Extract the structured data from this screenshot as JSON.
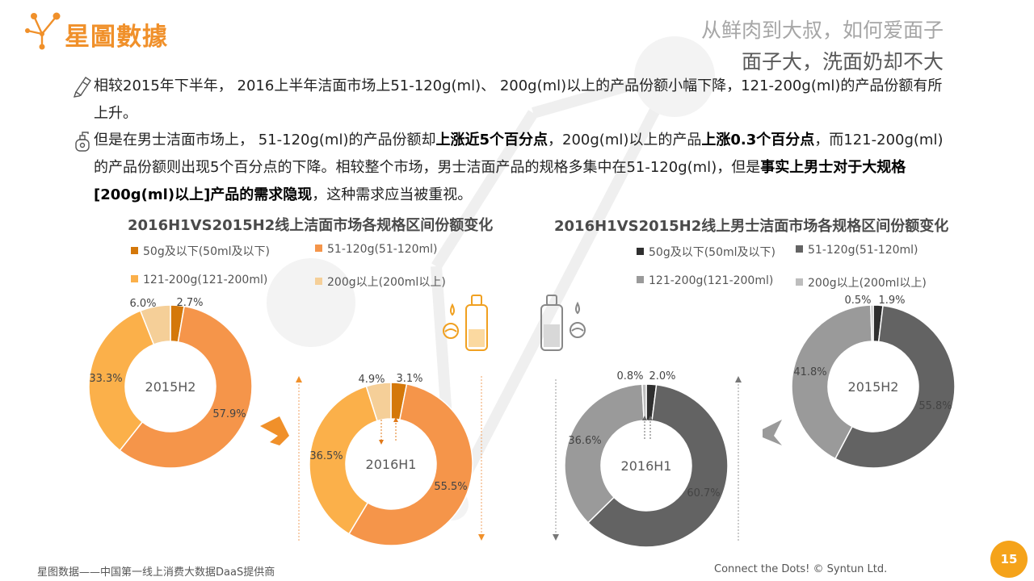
{
  "header": {
    "logo_text": "星圖數據",
    "subtitle_1": "从鲜肉到大叔，如何爱面子",
    "subtitle_2": "面子大，洗面奶却不大"
  },
  "bullets": [
    {
      "icon": "tube-icon",
      "segments": [
        {
          "text": "相较2015年下半年， 2016上半年洁面市场上51-120g(ml)、 200g(ml)以上的产品份额小幅下降，121-200g(ml)的产品份额有所上升。",
          "bold": false
        }
      ]
    },
    {
      "icon": "pump-bottle-icon",
      "segments": [
        {
          "text": "但是在男士洁面市场上， 51-120g(ml)的产品份额却",
          "bold": false
        },
        {
          "text": "上涨近5个百分点",
          "bold": true
        },
        {
          "text": "，200g(ml)以上的产品",
          "bold": false
        },
        {
          "text": "上涨0.3个百分点",
          "bold": true
        },
        {
          "text": "，而121-200g(ml)的产品份额则出现5个百分点的下降。相较整个市场，男士洁面产品的规格多集中在51-120g(ml)，但是",
          "bold": false
        },
        {
          "text": "事实上男士对于大规格[200g(ml)以上]产品的需求隐现",
          "bold": true
        },
        {
          "text": "，这种需求应当被重视。",
          "bold": false
        }
      ]
    }
  ],
  "chart_data": [
    {
      "type": "donut",
      "title": "2016H1VS2015H2线上洁面市场各规格区间份额变化",
      "categories": [
        "50g及以下(50ml及以下)",
        "51-120g(51-120ml)",
        "121-200g(121-200ml)",
        "200g以上(200ml以上)"
      ],
      "colors": [
        "#d4780a",
        "#f5954a",
        "#fbb04a",
        "#f5cf98"
      ],
      "series": [
        {
          "name": "2015H2",
          "values": [
            2.7,
            57.9,
            33.3,
            6.0
          ],
          "labels": [
            "2.7%",
            "57.9%",
            "33.3%",
            "6.0%"
          ]
        },
        {
          "name": "2016H1",
          "values": [
            3.1,
            55.5,
            36.5,
            4.9
          ],
          "labels": [
            "3.1%",
            "55.5%",
            "36.5%",
            "4.9%"
          ]
        }
      ]
    },
    {
      "type": "donut",
      "title": "2016H1VS2015H2线上男士洁面市场各规格区间份额变化",
      "categories": [
        "50g及以下(50ml及以下)",
        "51-120g(51-120ml)",
        "121-200g(121-200ml)",
        "200g以上(200ml以上)"
      ],
      "colors": [
        "#2f2f2f",
        "#636363",
        "#9a9a9a",
        "#bdbdbd"
      ],
      "series": [
        {
          "name": "2015H2",
          "values": [
            1.9,
            55.8,
            41.8,
            0.5
          ],
          "labels": [
            "1.9%",
            "55.8%",
            "41.8%",
            "0.5%"
          ]
        },
        {
          "name": "2016H1",
          "values": [
            2.0,
            60.7,
            36.6,
            0.8
          ],
          "labels": [
            "2.0%",
            "60.7%",
            "36.6%",
            "0.8%"
          ]
        }
      ]
    }
  ],
  "footer": {
    "left": "星图数据——中国第一线上消费大数据DaaS提供商",
    "right": "Connect the Dots!  © Syntun Ltd.",
    "page_number": "15"
  },
  "accent_color": "#f5a31a"
}
